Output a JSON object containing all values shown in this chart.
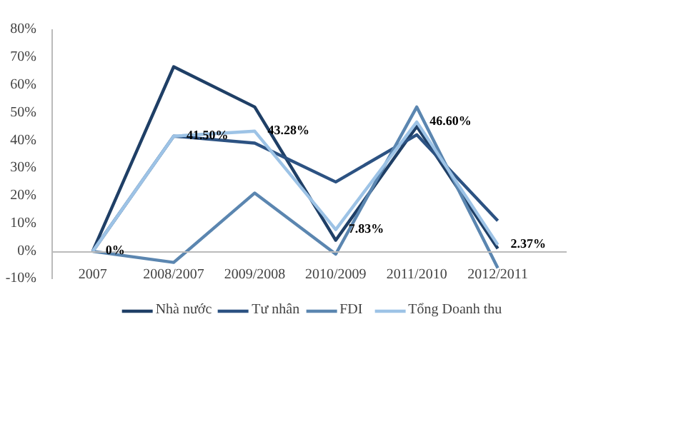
{
  "chart_data": {
    "type": "line",
    "categories": [
      "2007",
      "2008/2007",
      "2009/2008",
      "2010/2009",
      "2011/2010",
      "2012/2011"
    ],
    "series": [
      {
        "name": "Nhà nước",
        "color": "#1f3f66",
        "values": [
          0,
          66.5,
          52,
          4,
          45,
          1
        ]
      },
      {
        "name": "Tư nhân",
        "color": "#2c5282",
        "values": [
          0,
          41.5,
          39,
          25,
          42,
          11
        ]
      },
      {
        "name": "FDI",
        "color": "#5b86b0",
        "values": [
          0,
          -4,
          21,
          -1,
          52,
          -6
        ]
      },
      {
        "name": "Tổng Doanh thu",
        "color": "#9dc3e6",
        "values": [
          0,
          41.5,
          43.28,
          7.83,
          46.6,
          2.37
        ],
        "value_labels": [
          "0%",
          "41.50%",
          "43.28%",
          "7.83%",
          "46.60%",
          "2.37%"
        ]
      }
    ],
    "ylim": [
      -10,
      80
    ],
    "yticks": [
      {
        "value": -10,
        "label": "-10%"
      },
      {
        "value": 0,
        "label": "0%"
      },
      {
        "value": 10,
        "label": "10%"
      },
      {
        "value": 20,
        "label": "20%"
      },
      {
        "value": 30,
        "label": "30%"
      },
      {
        "value": 40,
        "label": "40%"
      },
      {
        "value": 50,
        "label": "50%"
      },
      {
        "value": 60,
        "label": "60%"
      },
      {
        "value": 70,
        "label": "70%"
      },
      {
        "value": 80,
        "label": "80%"
      }
    ],
    "grid": false,
    "legend": "bottom",
    "marker": "none",
    "line_style": "solid"
  }
}
